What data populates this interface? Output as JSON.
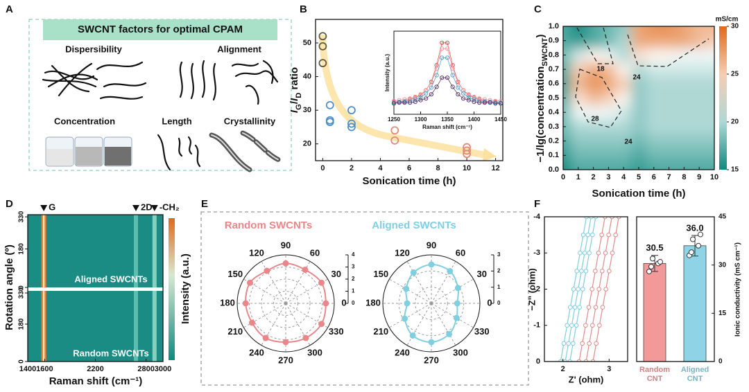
{
  "panel_labels": [
    "A",
    "B",
    "C",
    "D",
    "E",
    "F"
  ],
  "panel_a": {
    "title": "SWCNT factors for optimal CPAM",
    "factors": [
      "Dispersibility",
      "Alignment",
      "Concentration",
      "Length",
      "Crystallinity"
    ]
  },
  "chart_data": [
    {
      "type": "scatter",
      "xlabel": "Sonication time (h)",
      "ylabel": "IG/ID ratio",
      "xlim": [
        -0.5,
        12.5
      ],
      "ylim": [
        15,
        57
      ],
      "xticks": [
        0,
        2,
        4,
        6,
        8,
        10,
        12
      ],
      "yticks": [
        20,
        30,
        40,
        50
      ],
      "series": [
        {
          "color": "#5b5b3b",
          "x": [
            0,
            0,
            0
          ],
          "values": [
            52,
            49,
            44
          ]
        },
        {
          "color": "#4f8fc4",
          "x": [
            0.5,
            0.5,
            0.5,
            2,
            2,
            2
          ],
          "values": [
            31.5,
            27,
            26.5,
            30,
            26,
            25
          ]
        },
        {
          "color": "#e08a7a",
          "x": [
            5,
            5,
            10,
            10,
            10
          ],
          "values": [
            24,
            21,
            19,
            18,
            17
          ]
        }
      ],
      "inset": {
        "type": "line",
        "xlabel": "Raman shift (cm⁻¹)",
        "ylabel": "Intensity (a.u.)",
        "xlim": [
          1250,
          1450
        ],
        "ylim": [
          0,
          1
        ],
        "xticks": [
          1250,
          1300,
          1350,
          1400,
          1450
        ],
        "x": [
          1250,
          1260,
          1270,
          1280,
          1290,
          1300,
          1310,
          1320,
          1330,
          1340,
          1350,
          1360,
          1370,
          1380,
          1390,
          1400,
          1410,
          1420,
          1430,
          1440,
          1450
        ],
        "series": [
          {
            "color": "#d94f4f",
            "values": [
              0.15,
              0.15,
              0.16,
              0.18,
              0.2,
              0.23,
              0.29,
              0.39,
              0.59,
              0.86,
              0.86,
              0.59,
              0.39,
              0.29,
              0.23,
              0.2,
              0.18,
              0.16,
              0.15,
              0.15,
              0.14
            ]
          },
          {
            "color": "#f0a0a0",
            "values": [
              0.16,
              0.17,
              0.18,
              0.19,
              0.21,
              0.24,
              0.29,
              0.38,
              0.55,
              0.79,
              0.79,
              0.55,
              0.38,
              0.29,
              0.24,
              0.21,
              0.19,
              0.18,
              0.17,
              0.16,
              0.16
            ]
          },
          {
            "color": "#5ba3c9",
            "values": [
              0.14,
              0.15,
              0.15,
              0.16,
              0.18,
              0.2,
              0.25,
              0.32,
              0.47,
              0.68,
              0.68,
              0.47,
              0.32,
              0.25,
              0.2,
              0.18,
              0.16,
              0.15,
              0.15,
              0.14,
              0.14
            ]
          },
          {
            "color": "#5a3a6a",
            "values": [
              0.13,
              0.14,
              0.14,
              0.14,
              0.15,
              0.17,
              0.19,
              0.24,
              0.33,
              0.44,
              0.44,
              0.33,
              0.24,
              0.19,
              0.17,
              0.15,
              0.14,
              0.14,
              0.14,
              0.13,
              0.13
            ]
          }
        ]
      }
    },
    {
      "type": "contour",
      "xlabel": "Sonication time (h)",
      "ylabel": "−1/lg(concentrationSWCNT)",
      "colorbar_label": "mS/cm",
      "xlim": [
        0,
        10
      ],
      "ylim": [
        0,
        1
      ],
      "xticks": [
        0,
        1,
        2,
        3,
        4,
        5,
        6,
        7,
        8,
        9,
        10
      ],
      "yticks": [
        {
          "value": 0,
          "label": "0.0"
        },
        0.1,
        0.2,
        0.3,
        0.4,
        0.5,
        0.6,
        0.7,
        0.8,
        0.9,
        {
          "value": 1,
          "label": "1.0"
        }
      ],
      "clim": [
        15,
        30
      ],
      "cticks": [
        15,
        20,
        25,
        30
      ],
      "colors": [
        "#0e8a80",
        "#ffffff",
        "#e06a1a"
      ],
      "contour_labels": [
        "18",
        "24",
        "28",
        "24"
      ],
      "x": [
        0,
        1,
        2,
        3,
        4,
        5,
        6,
        7,
        8,
        9,
        10
      ],
      "y": [
        0,
        0.1,
        0.2,
        0.3,
        0.4,
        0.5,
        0.6,
        0.7,
        0.8,
        0.9,
        1
      ],
      "z": [
        [
          15,
          17,
          17,
          17,
          17,
          16,
          17,
          17,
          17,
          17,
          17
        ],
        [
          16,
          18,
          18,
          18,
          18,
          17,
          18,
          18,
          18,
          18,
          18
        ],
        [
          17,
          19,
          19,
          19,
          19,
          18,
          19,
          19,
          19,
          19,
          19
        ],
        [
          18,
          20,
          20,
          20,
          20,
          19,
          20,
          20,
          20,
          20,
          20
        ],
        [
          18,
          22,
          22,
          22,
          21,
          19,
          20,
          20,
          20,
          20,
          20
        ],
        [
          17,
          24,
          26,
          25,
          23,
          19,
          20,
          20,
          20,
          20,
          20
        ],
        [
          16,
          26,
          28,
          27,
          25,
          19,
          20,
          20,
          20,
          20,
          20
        ],
        [
          17,
          25,
          27,
          26,
          23,
          20,
          21,
          21,
          21,
          21,
          21
        ],
        [
          18,
          21,
          23,
          22,
          20,
          24,
          23,
          23,
          22,
          22,
          22
        ],
        [
          17,
          16,
          17,
          18,
          20,
          27,
          27,
          27,
          27,
          26,
          25
        ],
        [
          17,
          15,
          17,
          18,
          19,
          27,
          28,
          28,
          27,
          26,
          26
        ]
      ]
    },
    {
      "type": "spectral-map",
      "xlabel": "Raman shift (cm⁻¹)",
      "ylabel": "Rotation angle (º)",
      "colorbar_label": "Intensity (a.u.)",
      "xlim": [
        1400,
        3000
      ],
      "xticks": [
        1400,
        1600,
        2200,
        2800,
        3000
      ],
      "ylim": [
        0,
        340
      ],
      "yticks": [
        0,
        180,
        330
      ],
      "panels": [
        "Aligned SWCNTs",
        "Random SWCNTs"
      ],
      "peaks": [
        {
          "label": "G",
          "x": 1590
        },
        {
          "label": "2D",
          "x": 2680
        },
        {
          "label": "-CH₂",
          "x": 2900
        }
      ]
    },
    {
      "type": "polar",
      "title": "Random SWCNTs",
      "color": "#e8868a",
      "rlim": [
        0,
        4
      ],
      "rticks": [
        0,
        1,
        2,
        3,
        4
      ],
      "thetaticks": [
        0,
        30,
        60,
        90,
        120,
        150,
        180,
        210,
        240,
        270,
        300,
        330
      ],
      "theta": [
        0,
        30,
        60,
        90,
        120,
        150,
        180,
        210,
        240,
        270,
        300,
        330
      ],
      "values": [
        3.3,
        3.4,
        3.2,
        3.3,
        3.1,
        3.4,
        3.3,
        3.2,
        3.3,
        3.2,
        3.3,
        3.4
      ]
    },
    {
      "type": "polar",
      "title": "Aligned SWCNTs",
      "color": "#7fcfe0",
      "rlim": [
        0,
        3
      ],
      "rticks": [
        0,
        1,
        2,
        3
      ],
      "thetaticks": [
        0,
        30,
        60,
        90,
        120,
        150,
        180,
        210,
        240,
        270,
        300,
        330
      ],
      "theta": [
        0,
        30,
        60,
        90,
        120,
        150,
        180,
        210,
        240,
        270,
        300,
        330
      ],
      "values": [
        1.6,
        1.9,
        2.3,
        2.4,
        2.2,
        1.8,
        1.5,
        1.9,
        2.3,
        2.4,
        2.2,
        1.8
      ]
    },
    {
      "type": "line",
      "xlabel": "Z' (ohm)",
      "ylabel": "−Z'' (ohm)",
      "xlim": [
        1.6,
        3.4
      ],
      "ylim": [
        0,
        -4
      ],
      "xticks": [
        2,
        3
      ],
      "yticks": [
        0,
        -1,
        -2,
        -3,
        -4
      ],
      "series": [
        {
          "color": "#7fcde0",
          "x": [
            1.95,
            2.02,
            2.09,
            2.16,
            2.23,
            2.3,
            2.37,
            2.44,
            2.51
          ],
          "values": [
            0,
            -0.5,
            -1,
            -1.5,
            -2,
            -2.5,
            -3,
            -3.5,
            -4
          ]
        },
        {
          "color": "#7fcde0",
          "x": [
            2.05,
            2.12,
            2.19,
            2.26,
            2.33,
            2.4,
            2.47,
            2.54,
            2.61
          ],
          "values": [
            0,
            -0.5,
            -1,
            -1.5,
            -2,
            -2.5,
            -3,
            -3.5,
            -4
          ]
        },
        {
          "color": "#7fcde0",
          "x": [
            2.15,
            2.22,
            2.29,
            2.36,
            2.43,
            2.5,
            2.57,
            2.64,
            2.71
          ],
          "values": [
            0,
            -0.5,
            -1,
            -1.5,
            -2,
            -2.5,
            -3,
            -3.5,
            -4
          ]
        },
        {
          "color": "#e08a8a",
          "x": [
            2.35,
            2.42,
            2.49,
            2.56,
            2.63,
            2.7,
            2.77,
            2.84,
            2.91
          ],
          "values": [
            0,
            -0.5,
            -1,
            -1.5,
            -2,
            -2.5,
            -3,
            -3.5,
            -4
          ]
        },
        {
          "color": "#e08a8a",
          "x": [
            2.5,
            2.57,
            2.64,
            2.71,
            2.78,
            2.85,
            2.92,
            2.99,
            3.06
          ],
          "values": [
            0,
            -0.5,
            -1,
            -1.5,
            -2,
            -2.5,
            -3,
            -3.5,
            -4
          ]
        },
        {
          "color": "#e08a8a",
          "x": [
            2.65,
            2.72,
            2.79,
            2.86,
            2.93,
            3,
            3.07,
            3.14,
            3.21
          ],
          "values": [
            0,
            -0.5,
            -1,
            -1.5,
            -2,
            -2.5,
            -3,
            -3.5,
            -4
          ]
        }
      ]
    },
    {
      "type": "bar",
      "ylabel": "Ionic conductivity (mS cm⁻¹)",
      "ylim": [
        0,
        45
      ],
      "yticks": [
        0,
        15,
        30,
        45
      ],
      "categories": [
        "Random CNT",
        "Aligned CNT"
      ],
      "values": [
        30.5,
        36
      ],
      "value_labels": [
        "30.5",
        "36.0"
      ],
      "errors": [
        2.5,
        3.2
      ],
      "colors": [
        "#f29a9a",
        "#8fd4e6"
      ],
      "points": [
        [
          28,
          30.5,
          32,
          31,
          29.5
        ],
        [
          33,
          36,
          38,
          39.5,
          34
        ]
      ]
    }
  ]
}
